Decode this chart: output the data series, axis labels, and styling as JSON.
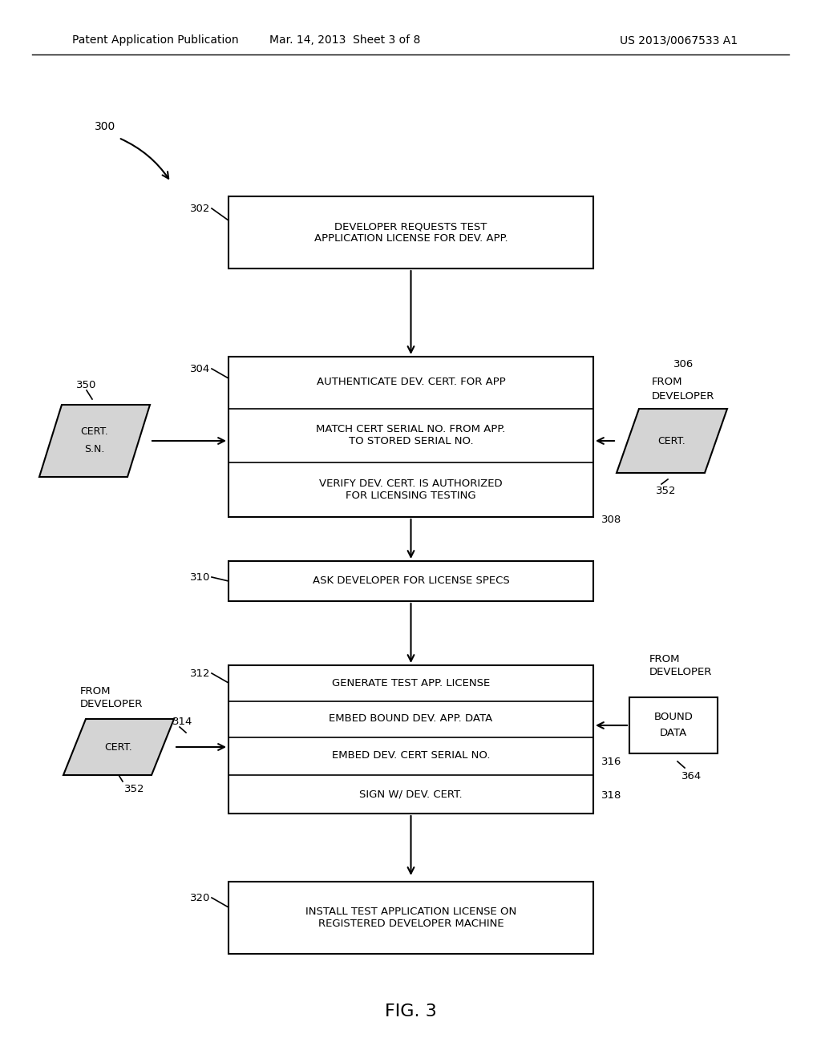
{
  "header_left": "Patent Application Publication",
  "header_mid": "Mar. 14, 2013  Sheet 3 of 8",
  "header_right": "US 2013/0067533 A1",
  "fig_label": "FIG. 3",
  "bg_color": "#ffffff",
  "line_color": "#000000",
  "text_color": "#000000",
  "box_302_text": "DEVELOPER REQUESTS TEST\nAPPLICATION LICENSE FOR DEV. APP.",
  "box_304_text_top": "AUTHENTICATE DEV. CERT. FOR APP",
  "box_304_text_mid": "MATCH CERT SERIAL NO. FROM APP.\nTO STORED SERIAL NO.",
  "box_304_text_bot": "VERIFY DEV. CERT. IS AUTHORIZED\nFOR LICENSING TESTING",
  "box_310_text": "ASK DEVELOPER FOR LICENSE SPECS",
  "box_312_text_top": "GENERATE TEST APP. LICENSE",
  "box_312_text_1": "EMBED BOUND DEV. APP. DATA",
  "box_312_text_2": "EMBED DEV. CERT SERIAL NO.",
  "box_312_text_3": "SIGN W/ DEV. CERT.",
  "box_320_text": "INSTALL TEST APPLICATION LICENSE ON\nREGISTERED DEVELOPER MACHINE",
  "label_300": "300",
  "label_302": "302",
  "label_304": "304",
  "label_306": "306",
  "label_308": "308",
  "label_310": "310",
  "label_312": "312",
  "label_314": "314",
  "label_316": "316",
  "label_318": "318",
  "label_320": "320",
  "label_350": "350",
  "label_352_top": "352",
  "label_352_bot": "352",
  "label_364": "364",
  "cert_sn_line1": "CERT.",
  "cert_sn_line2": "S.N.",
  "cert_top_label": "CERT.",
  "from_dev_top_line1": "FROM",
  "from_dev_top_line2": "DEVELOPER",
  "cert_bot_label": "CERT.",
  "from_dev_bot_line1": "FROM",
  "from_dev_bot_line2": "DEVELOPER",
  "bound_data_line1": "BOUND",
  "bound_data_line2": "DATA",
  "from_dev_bound_line1": "FROM",
  "from_dev_bound_line2": "DEVELOPER"
}
